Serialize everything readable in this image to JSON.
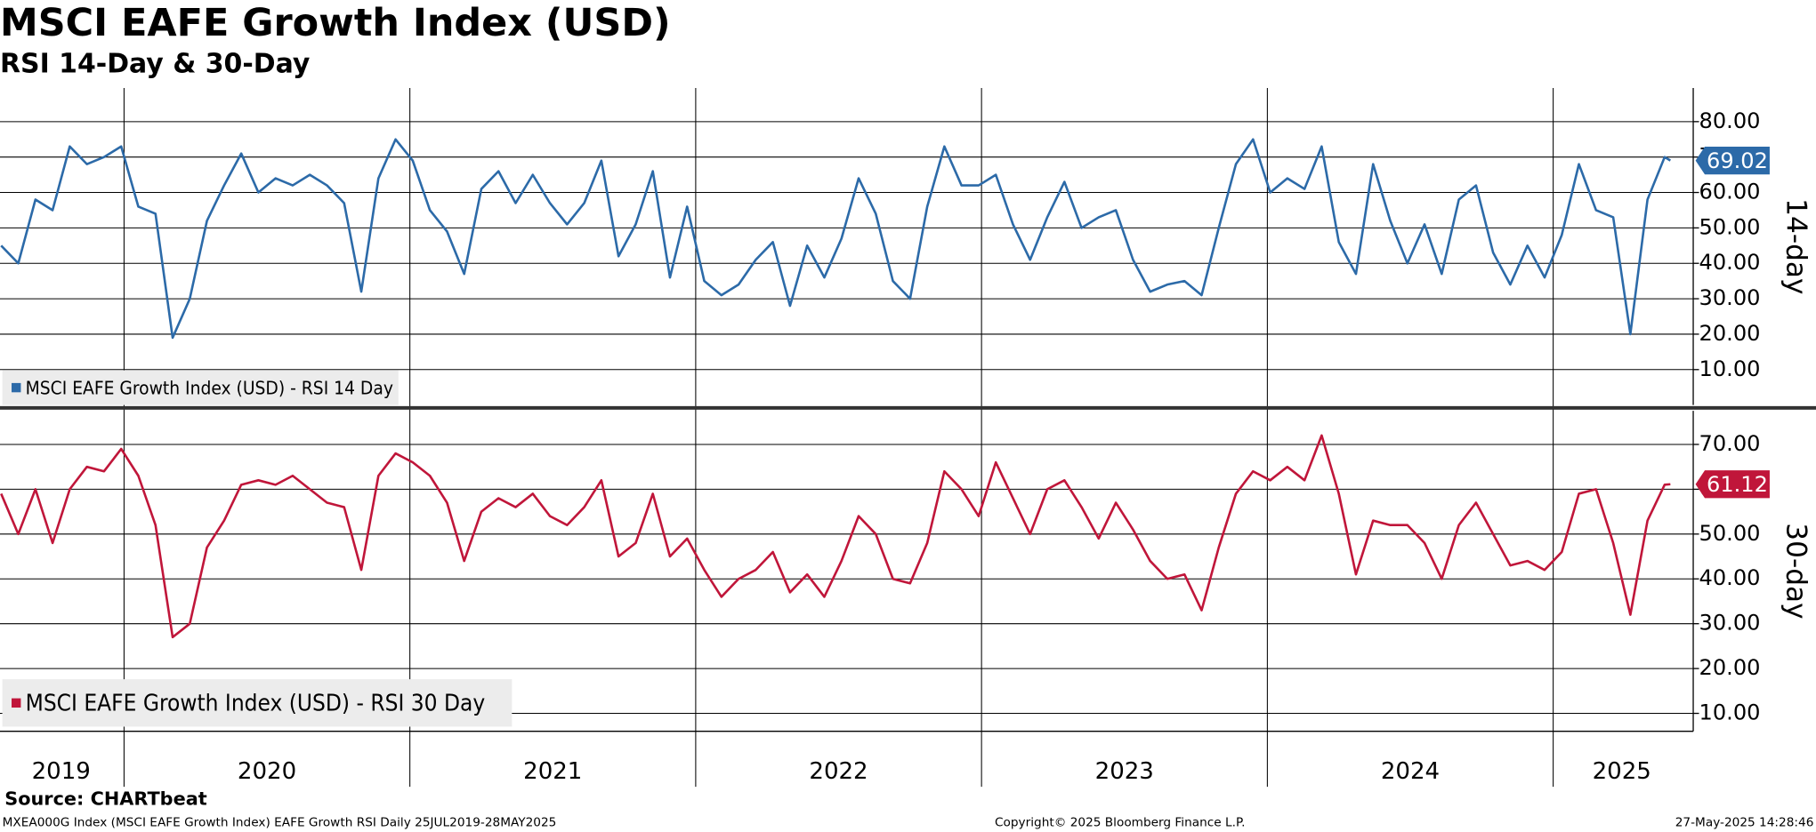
{
  "chart_data": {
    "type": "line",
    "title": "MSCI EAFE Growth Index (USD)",
    "subtitle": "RSI 14-Day & 30-Day",
    "source": "Source: CHARTbeat",
    "footer_left": "MXEA000G Index (MSCI EAFE Growth Index) EAFE Growth RSI  Daily 25JUL2019-28MAY2025",
    "footer_center": "Copyright© 2025 Bloomberg Finance L.P.",
    "footer_right": "27-May-2025 14:28:46",
    "xlim": [
      2019.566,
      2025.49
    ],
    "xgrid": [
      2020,
      2021,
      2022,
      2023,
      2024,
      2025
    ],
    "xticks": [
      {
        "value": 2019.78,
        "label": "2019"
      },
      {
        "value": 2020.5,
        "label": "2020"
      },
      {
        "value": 2021.5,
        "label": "2021"
      },
      {
        "value": 2022.5,
        "label": "2022"
      },
      {
        "value": 2023.5,
        "label": "2023"
      },
      {
        "value": 2024.5,
        "label": "2024"
      },
      {
        "value": 2025.24,
        "label": "2025"
      }
    ],
    "x": [
      2019.57,
      2019.63,
      2019.69,
      2019.75,
      2019.81,
      2019.87,
      2019.93,
      2019.99,
      2020.05,
      2020.11,
      2020.17,
      2020.23,
      2020.29,
      2020.35,
      2020.41,
      2020.47,
      2020.53,
      2020.59,
      2020.65,
      2020.71,
      2020.77,
      2020.83,
      2020.89,
      2020.95,
      2021.01,
      2021.07,
      2021.13,
      2021.19,
      2021.25,
      2021.31,
      2021.37,
      2021.43,
      2021.49,
      2021.55,
      2021.61,
      2021.67,
      2021.73,
      2021.79,
      2021.85,
      2021.91,
      2021.97,
      2022.03,
      2022.09,
      2022.15,
      2022.21,
      2022.27,
      2022.33,
      2022.39,
      2022.45,
      2022.51,
      2022.57,
      2022.63,
      2022.69,
      2022.75,
      2022.81,
      2022.87,
      2022.93,
      2022.99,
      2023.05,
      2023.11,
      2023.17,
      2023.23,
      2023.29,
      2023.35,
      2023.41,
      2023.47,
      2023.53,
      2023.59,
      2023.65,
      2023.71,
      2023.77,
      2023.83,
      2023.89,
      2023.95,
      2024.01,
      2024.07,
      2024.13,
      2024.19,
      2024.25,
      2024.31,
      2024.37,
      2024.43,
      2024.49,
      2024.55,
      2024.61,
      2024.67,
      2024.73,
      2024.79,
      2024.85,
      2024.91,
      2024.97,
      2025.03,
      2025.09,
      2025.15,
      2025.21,
      2025.27,
      2025.33,
      2025.39,
      2025.41
    ],
    "grid": true,
    "series": [
      {
        "name": "MSCI EAFE Growth Index (USD) - RSI 14 Day",
        "axis_label": "14-day",
        "color": "#2c6aa8",
        "ylim": [
          0,
          89.5
        ],
        "yticks": [
          {
            "value": 10,
            "label": "10.00"
          },
          {
            "value": 20,
            "label": "20.00"
          },
          {
            "value": 30,
            "label": "30.00"
          },
          {
            "value": 40,
            "label": "40.00"
          },
          {
            "value": 50,
            "label": "50.00"
          },
          {
            "value": 60,
            "label": "60.00"
          },
          {
            "value": 70,
            "label": "70.00"
          },
          {
            "value": 80,
            "label": "80.00"
          }
        ],
        "values": [
          45,
          40,
          58,
          55,
          73,
          68,
          70,
          73,
          56,
          54,
          19,
          30,
          52,
          62,
          71,
          60,
          64,
          62,
          65,
          62,
          57,
          32,
          64,
          75,
          69,
          55,
          49,
          37,
          61,
          66,
          57,
          65,
          57,
          51,
          57,
          69,
          42,
          51,
          66,
          36,
          56,
          35,
          31,
          34,
          41,
          46,
          28,
          45,
          36,
          47,
          64,
          54,
          35,
          30,
          56,
          73,
          62,
          62,
          65,
          51,
          41,
          53,
          63,
          50,
          53,
          55,
          41,
          32,
          34,
          35,
          31,
          50,
          68,
          75,
          60,
          64,
          61,
          73,
          46,
          37,
          68,
          52,
          40,
          51,
          37,
          58,
          62,
          43,
          34,
          45,
          36,
          48,
          68,
          55,
          53,
          20,
          58,
          70,
          69.02
        ]
      },
      {
        "name": "MSCI EAFE Growth Index (USD) - RSI 30 Day",
        "axis_label": "30-day",
        "color": "#c0163a",
        "ylim": [
          6,
          77.5
        ],
        "yticks": [
          {
            "value": 10,
            "label": "10.00"
          },
          {
            "value": 20,
            "label": "20.00"
          },
          {
            "value": 30,
            "label": "30.00"
          },
          {
            "value": 40,
            "label": "40.00"
          },
          {
            "value": 50,
            "label": "50.00"
          },
          {
            "value": 60,
            "label": "60.00"
          },
          {
            "value": 70,
            "label": "70.00"
          }
        ],
        "values": [
          59,
          50,
          60,
          48,
          60,
          65,
          64,
          69,
          63,
          52,
          27,
          30,
          47,
          53,
          61,
          62,
          61,
          63,
          60,
          57,
          56,
          42,
          63,
          68,
          66,
          63,
          57,
          44,
          55,
          58,
          56,
          59,
          54,
          52,
          56,
          62,
          45,
          48,
          59,
          45,
          49,
          42,
          36,
          40,
          42,
          46,
          37,
          41,
          36,
          44,
          54,
          50,
          40,
          39,
          48,
          64,
          60,
          54,
          66,
          58,
          50,
          60,
          62,
          56,
          49,
          57,
          51,
          44,
          40,
          41,
          33,
          47,
          59,
          64,
          62,
          65,
          62,
          72,
          59,
          41,
          53,
          52,
          52,
          48,
          40,
          52,
          57,
          50,
          43,
          44,
          42,
          46,
          59,
          60,
          48,
          32,
          53,
          61,
          61.12
        ]
      }
    ]
  }
}
